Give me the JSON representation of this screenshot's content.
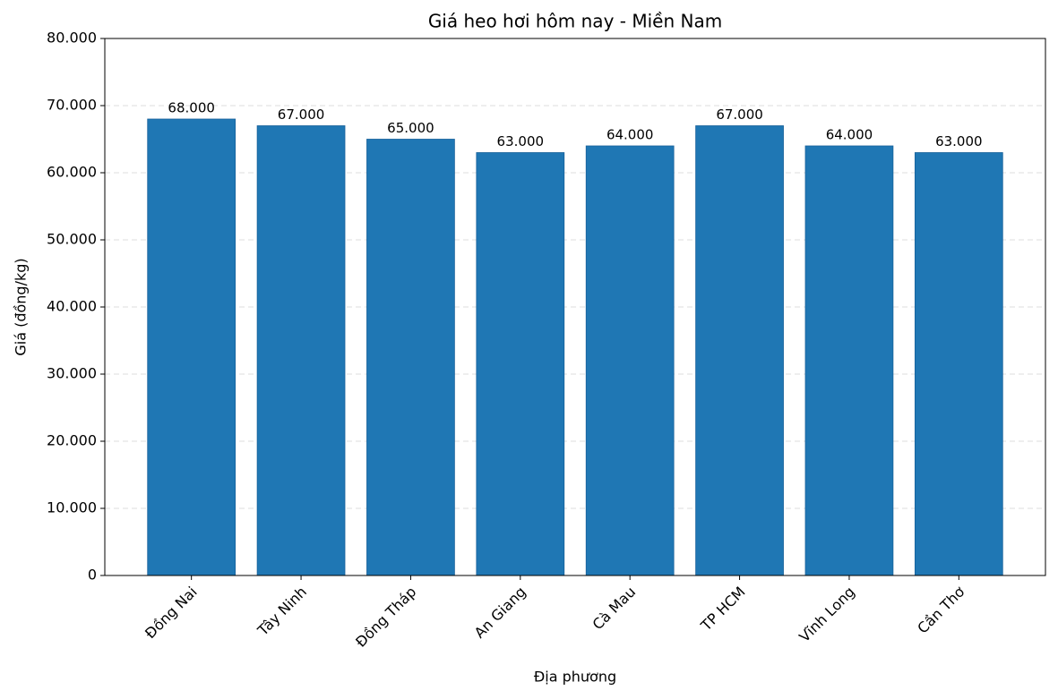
{
  "chart_data": {
    "type": "bar",
    "title": "Giá heo hơi hôm nay - Miền Nam",
    "x_label": "Địa phương",
    "y_label": "Giá (đồng/kg)",
    "categories": [
      "Đồng Nai",
      "Tây Ninh",
      "Đồng Tháp",
      "An Giang",
      "Cà Mau",
      "TP HCM",
      "Vĩnh Long",
      "Cần Thơ"
    ],
    "values": [
      68000,
      67000,
      65000,
      63000,
      64000,
      67000,
      64000,
      63000
    ],
    "value_labels": [
      "68.000",
      "67.000",
      "65.000",
      "63.000",
      "64.000",
      "67.000",
      "64.000",
      "63.000"
    ],
    "color": "#1f77b4",
    "ylim": [
      0,
      80000
    ],
    "yticks": [
      0,
      {
        "value": 10000,
        "label": "10.000"
      },
      {
        "value": 20000,
        "label": "20.000"
      },
      {
        "value": 30000,
        "label": "30.000"
      },
      {
        "value": 40000,
        "label": "40.000"
      },
      {
        "value": 50000,
        "label": "50.000"
      },
      {
        "value": 60000,
        "label": "60.000"
      },
      {
        "value": 70000,
        "label": "70.000"
      },
      {
        "value": 80000,
        "label": "80.000"
      }
    ],
    "grid": true
  }
}
